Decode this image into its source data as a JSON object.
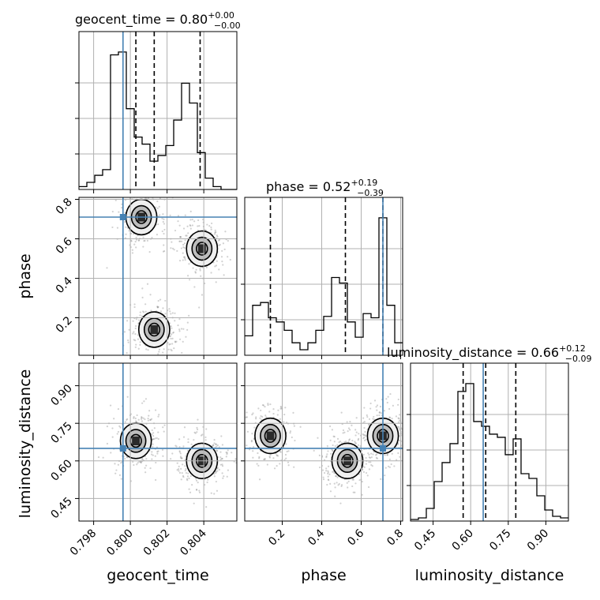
{
  "params": [
    "geocent_time",
    "phase",
    "luminosity_distance"
  ],
  "titles": [
    {
      "name": "geocent_time",
      "median": "0.80",
      "plus": "+0.00",
      "minus": "−0.00"
    },
    {
      "name": "phase",
      "median": "0.52",
      "plus": "+0.19",
      "minus": "−0.39"
    },
    {
      "name": "luminosity_distance",
      "median": "0.66",
      "plus": "+0.12",
      "minus": "−0.09"
    }
  ],
  "truths": {
    "geocent_time": 0.7996,
    "phase": 0.71,
    "luminosity_distance": 0.65
  },
  "colors": {
    "truth": "#4682b4",
    "hist": "#000000",
    "grid": "#b0b0b0"
  },
  "chart_data": {
    "type": "corner",
    "axes": {
      "geocent_time": {
        "range": [
          0.7972,
          0.8058
        ],
        "ticks": [
          "0.798",
          "0.800",
          "0.802",
          "0.804"
        ],
        "tick_values": [
          0.798,
          0.8,
          0.802,
          0.804
        ]
      },
      "phase": {
        "range": [
          0.01,
          0.81
        ],
        "ticks": [
          "0.2",
          "0.4",
          "0.6",
          "0.8"
        ],
        "tick_values": [
          0.2,
          0.4,
          0.6,
          0.8
        ]
      },
      "luminosity_distance": {
        "range": [
          0.36,
          0.99
        ],
        "ticks": [
          "0.45",
          "0.60",
          "0.75",
          "0.90"
        ],
        "tick_values": [
          0.45,
          0.6,
          0.75,
          0.9
        ]
      }
    },
    "histograms": {
      "geocent_time": {
        "edges_start": 0.7972,
        "edges_step": 0.00043,
        "counts": [
          2,
          5,
          10,
          14,
          95,
          97,
          57,
          37,
          32,
          20,
          24,
          31,
          49,
          75,
          61,
          26,
          8,
          2,
          0,
          0
        ],
        "quantiles": [
          0.8003,
          0.8013,
          0.8038
        ]
      },
      "phase": {
        "edges_start": 0.01,
        "edges_step": 0.04,
        "counts": [
          14,
          36,
          38,
          27,
          24,
          18,
          9,
          4,
          9,
          18,
          28,
          56,
          52,
          24,
          13,
          30,
          27,
          99,
          36,
          9
        ],
        "quantiles": [
          0.14,
          0.52,
          0.71
        ]
      },
      "luminosity_distance": {
        "edges_start": 0.36,
        "edges_step": 0.0315,
        "counts": [
          1,
          2,
          8,
          25,
          37,
          49,
          82,
          87,
          63,
          60,
          55,
          53,
          42,
          52,
          30,
          27,
          16,
          7,
          3,
          2
        ],
        "quantiles": [
          0.57,
          0.66,
          0.78
        ]
      }
    },
    "contour_centers": {
      "geocent_time_vs_phase": [
        {
          "x": 0.8006,
          "y": 0.71
        },
        {
          "x": 0.8039,
          "y": 0.55
        },
        {
          "x": 0.8013,
          "y": 0.14
        }
      ],
      "geocent_time_vs_luminosity_distance": [
        {
          "x": 0.8003,
          "y": 0.68
        },
        {
          "x": 0.8039,
          "y": 0.6
        }
      ],
      "phase_vs_luminosity_distance": [
        {
          "x": 0.14,
          "y": 0.7
        },
        {
          "x": 0.53,
          "y": 0.6
        },
        {
          "x": 0.71,
          "y": 0.7
        }
      ]
    }
  }
}
